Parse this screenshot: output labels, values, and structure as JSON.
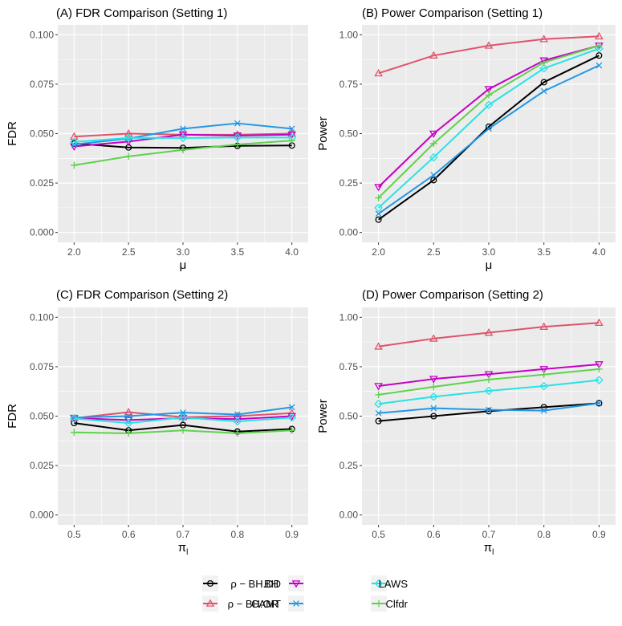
{
  "chart_data": [
    {
      "type": "line",
      "title": "(A) FDR Comparison (Setting 1)",
      "xlabel": "μ",
      "ylabel": "FDR",
      "x": [
        2.0,
        2.5,
        3.0,
        3.5,
        4.0
      ],
      "xticks": [
        "2.0",
        "2.5",
        "3.0",
        "3.5",
        "4.0"
      ],
      "xlim": [
        1.85,
        4.15
      ],
      "ylim": [
        -0.005,
        0.105
      ],
      "yticks": [
        0.0,
        0.025,
        0.05,
        0.075,
        0.1
      ],
      "yticklabels": [
        "0.000",
        "0.025",
        "0.050",
        "0.075",
        "0.100"
      ],
      "series": [
        {
          "name": "BH",
          "values": [
            0.045,
            0.043,
            0.0428,
            0.0438,
            0.044
          ]
        },
        {
          "name": "ρ−BH.OR",
          "values": [
            0.0485,
            0.05,
            0.0495,
            0.0495,
            0.05
          ]
        },
        {
          "name": "ρ−BH.DD",
          "values": [
            0.0435,
            0.046,
            0.0495,
            0.049,
            0.0495
          ]
        },
        {
          "name": "CAMT",
          "values": [
            0.0445,
            0.0475,
            0.0525,
            0.0552,
            0.0525
          ]
        },
        {
          "name": "LAWS",
          "values": [
            0.0458,
            0.0478,
            0.0478,
            0.048,
            0.048
          ]
        },
        {
          "name": "Clfdr",
          "values": [
            0.034,
            0.0385,
            0.0418,
            0.0445,
            0.0465
          ]
        }
      ]
    },
    {
      "type": "line",
      "title": "(B) Power Comparison (Setting 1)",
      "xlabel": "μ",
      "ylabel": "Power",
      "x": [
        2.0,
        2.5,
        3.0,
        3.5,
        4.0
      ],
      "xticks": [
        "2.0",
        "2.5",
        "3.0",
        "3.5",
        "4.0"
      ],
      "xlim": [
        1.85,
        4.15
      ],
      "ylim": [
        -0.05,
        1.05
      ],
      "yticks": [
        0.0,
        0.25,
        0.5,
        0.75,
        1.0
      ],
      "yticklabels": [
        "0.00",
        "0.25",
        "0.50",
        "0.75",
        "1.00"
      ],
      "series": [
        {
          "name": "BH",
          "values": [
            0.065,
            0.265,
            0.535,
            0.76,
            0.895
          ]
        },
        {
          "name": "ρ−BH.OR",
          "values": [
            0.805,
            0.895,
            0.945,
            0.978,
            0.992
          ]
        },
        {
          "name": "ρ−BH.DD",
          "values": [
            0.23,
            0.5,
            0.725,
            0.87,
            0.945
          ]
        },
        {
          "name": "CAMT",
          "values": [
            0.095,
            0.29,
            0.525,
            0.715,
            0.845
          ]
        },
        {
          "name": "LAWS",
          "values": [
            0.125,
            0.38,
            0.645,
            0.83,
            0.93
          ]
        },
        {
          "name": "Clfdr",
          "values": [
            0.175,
            0.45,
            0.695,
            0.86,
            0.945
          ]
        }
      ]
    },
    {
      "type": "line",
      "title": "(C) FDR Comparison (Setting 2)",
      "xlabel": "π",
      "xlabel_sub": "l",
      "ylabel": "FDR",
      "x": [
        0.5,
        0.6,
        0.7,
        0.8,
        0.9
      ],
      "xticks": [
        "0.5",
        "0.6",
        "0.7",
        "0.8",
        "0.9"
      ],
      "xlim": [
        0.47,
        0.93
      ],
      "ylim": [
        -0.005,
        0.105
      ],
      "yticks": [
        0.0,
        0.025,
        0.05,
        0.075,
        0.1
      ],
      "yticklabels": [
        "0.000",
        "0.025",
        "0.050",
        "0.075",
        "0.100"
      ],
      "series": [
        {
          "name": "BH",
          "values": [
            0.0465,
            0.0428,
            0.0455,
            0.0422,
            0.0435
          ]
        },
        {
          "name": "ρ−BH.OR",
          "values": [
            0.049,
            0.052,
            0.0495,
            0.05,
            0.0515
          ]
        },
        {
          "name": "ρ−BH.DD",
          "values": [
            0.049,
            0.048,
            0.049,
            0.0485,
            0.05
          ]
        },
        {
          "name": "CAMT",
          "values": [
            0.0493,
            0.05,
            0.0518,
            0.0508,
            0.0545
          ]
        },
        {
          "name": "LAWS",
          "values": [
            0.0488,
            0.0465,
            0.0493,
            0.0473,
            0.0493
          ]
        },
        {
          "name": "Clfdr",
          "values": [
            0.0418,
            0.0413,
            0.0428,
            0.0413,
            0.0428
          ]
        }
      ]
    },
    {
      "type": "line",
      "title": "(D) Power Comparison (Setting 2)",
      "xlabel": "π",
      "xlabel_sub": "l",
      "ylabel": "Power",
      "x": [
        0.5,
        0.6,
        0.7,
        0.8,
        0.9
      ],
      "xticks": [
        "0.5",
        "0.6",
        "0.7",
        "0.8",
        "0.9"
      ],
      "xlim": [
        0.47,
        0.93
      ],
      "ylim": [
        -0.05,
        1.05
      ],
      "yticks": [
        0.0,
        0.25,
        0.5,
        0.75,
        1.0
      ],
      "yticklabels": [
        "0.00",
        "0.25",
        "0.50",
        "0.75",
        "1.00"
      ],
      "series": [
        {
          "name": "BH",
          "values": [
            0.475,
            0.5,
            0.525,
            0.545,
            0.565
          ]
        },
        {
          "name": "ρ−BH.OR",
          "values": [
            0.852,
            0.892,
            0.922,
            0.952,
            0.972
          ]
        },
        {
          "name": "ρ−BH.DD",
          "values": [
            0.652,
            0.688,
            0.712,
            0.738,
            0.762
          ]
        },
        {
          "name": "CAMT",
          "values": [
            0.515,
            0.54,
            0.532,
            0.528,
            0.565
          ]
        },
        {
          "name": "LAWS",
          "values": [
            0.562,
            0.598,
            0.628,
            0.652,
            0.682
          ]
        },
        {
          "name": "Clfdr",
          "values": [
            0.608,
            0.648,
            0.685,
            0.71,
            0.738
          ]
        }
      ]
    }
  ],
  "legend": {
    "items": [
      {
        "name": "BH",
        "label": "BH",
        "color": "#000000",
        "marker": "circle"
      },
      {
        "name": "ρ−BH.OR",
        "label": "ρ − BH.OR",
        "color": "#df536b",
        "marker": "triangle-up"
      },
      {
        "name": "ρ−BH.DD",
        "label": "ρ − BH.DD",
        "color": "#c400c4",
        "marker": "triangle-down"
      },
      {
        "name": "CAMT",
        "label": "CAMT",
        "color": "#2297e6",
        "marker": "x"
      },
      {
        "name": "LAWS",
        "label": "LAWS",
        "color": "#28e2e5",
        "marker": "diamond"
      },
      {
        "name": "Clfdr",
        "label": "Clfdr",
        "color": "#61d04f",
        "marker": "plus"
      }
    ]
  }
}
